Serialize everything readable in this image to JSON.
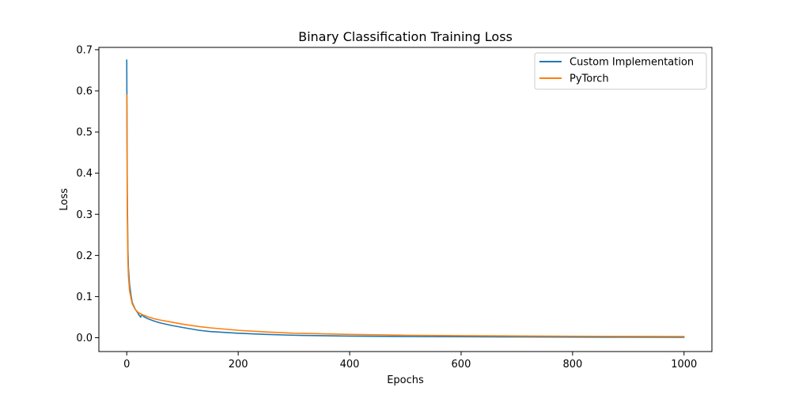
{
  "chart_data": {
    "type": "line",
    "title": "Binary Classification Training Loss",
    "xlabel": "Epochs",
    "ylabel": "Loss",
    "xlim": [
      -50,
      1050
    ],
    "ylim": [
      -0.0336,
      0.7056
    ],
    "xticks": [
      0,
      200,
      400,
      600,
      800,
      1000
    ],
    "yticks": [
      0.0,
      0.1,
      0.2,
      0.3,
      0.4,
      0.5,
      0.6,
      0.7
    ],
    "xtick_labels": [
      "0",
      "200",
      "400",
      "600",
      "800",
      "1000"
    ],
    "ytick_labels": [
      "0.0",
      "0.1",
      "0.2",
      "0.3",
      "0.4",
      "0.5",
      "0.6",
      "0.7"
    ],
    "grid": false,
    "legend_position": "top-right",
    "series": [
      {
        "name": "Custom Implementation",
        "color": "#1f77b4",
        "x": [
          0,
          1,
          2,
          3,
          5,
          8,
          10,
          15,
          20,
          22,
          25,
          27,
          30,
          35,
          40,
          50,
          60,
          80,
          100,
          130,
          150,
          200,
          250,
          300,
          400,
          500,
          600,
          700,
          800,
          900,
          1000
        ],
        "y": [
          0.675,
          0.35,
          0.22,
          0.17,
          0.13,
          0.1,
          0.085,
          0.07,
          0.06,
          0.055,
          0.05,
          0.057,
          0.052,
          0.048,
          0.045,
          0.04,
          0.036,
          0.03,
          0.025,
          0.018,
          0.015,
          0.011,
          0.008,
          0.006,
          0.004,
          0.003,
          0.0025,
          0.002,
          0.0015,
          0.0012,
          0.001
        ]
      },
      {
        "name": "PyTorch",
        "color": "#ff7f0e",
        "x": [
          0,
          1,
          2,
          3,
          5,
          8,
          10,
          15,
          20,
          25,
          30,
          40,
          50,
          60,
          80,
          100,
          130,
          150,
          200,
          250,
          300,
          400,
          500,
          600,
          700,
          800,
          900,
          1000
        ],
        "y": [
          0.59,
          0.3,
          0.19,
          0.15,
          0.115,
          0.093,
          0.082,
          0.069,
          0.062,
          0.058,
          0.055,
          0.05,
          0.046,
          0.043,
          0.038,
          0.033,
          0.027,
          0.024,
          0.018,
          0.014,
          0.011,
          0.008,
          0.006,
          0.005,
          0.0042,
          0.0036,
          0.0032,
          0.003
        ]
      }
    ]
  }
}
